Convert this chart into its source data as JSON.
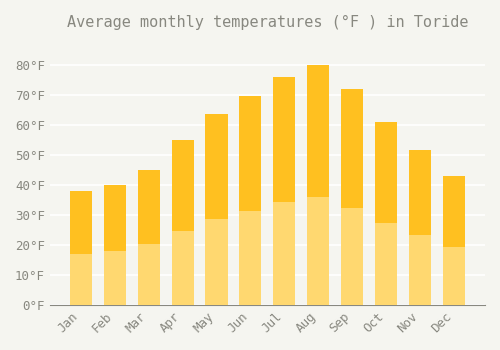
{
  "title": "Average monthly temperatures (°F ) in Toride",
  "months": [
    "Jan",
    "Feb",
    "Mar",
    "Apr",
    "May",
    "Jun",
    "Jul",
    "Aug",
    "Sep",
    "Oct",
    "Nov",
    "Dec"
  ],
  "values": [
    38,
    40,
    45,
    55,
    63.5,
    69.5,
    76,
    80,
    72,
    61,
    51.5,
    43
  ],
  "bar_color_top": "#FFC020",
  "bar_color_bottom": "#FFD870",
  "ylim": [
    0,
    88
  ],
  "yticks": [
    0,
    10,
    20,
    30,
    40,
    50,
    60,
    70,
    80
  ],
  "ytick_labels": [
    "0°F",
    "10°F",
    "20°F",
    "30°F",
    "40°F",
    "50°F",
    "60°F",
    "70°F",
    "80°F"
  ],
  "background_color": "#F5F5F0",
  "grid_color": "#FFFFFF",
  "title_fontsize": 11,
  "tick_fontsize": 9,
  "font_color": "#888880"
}
